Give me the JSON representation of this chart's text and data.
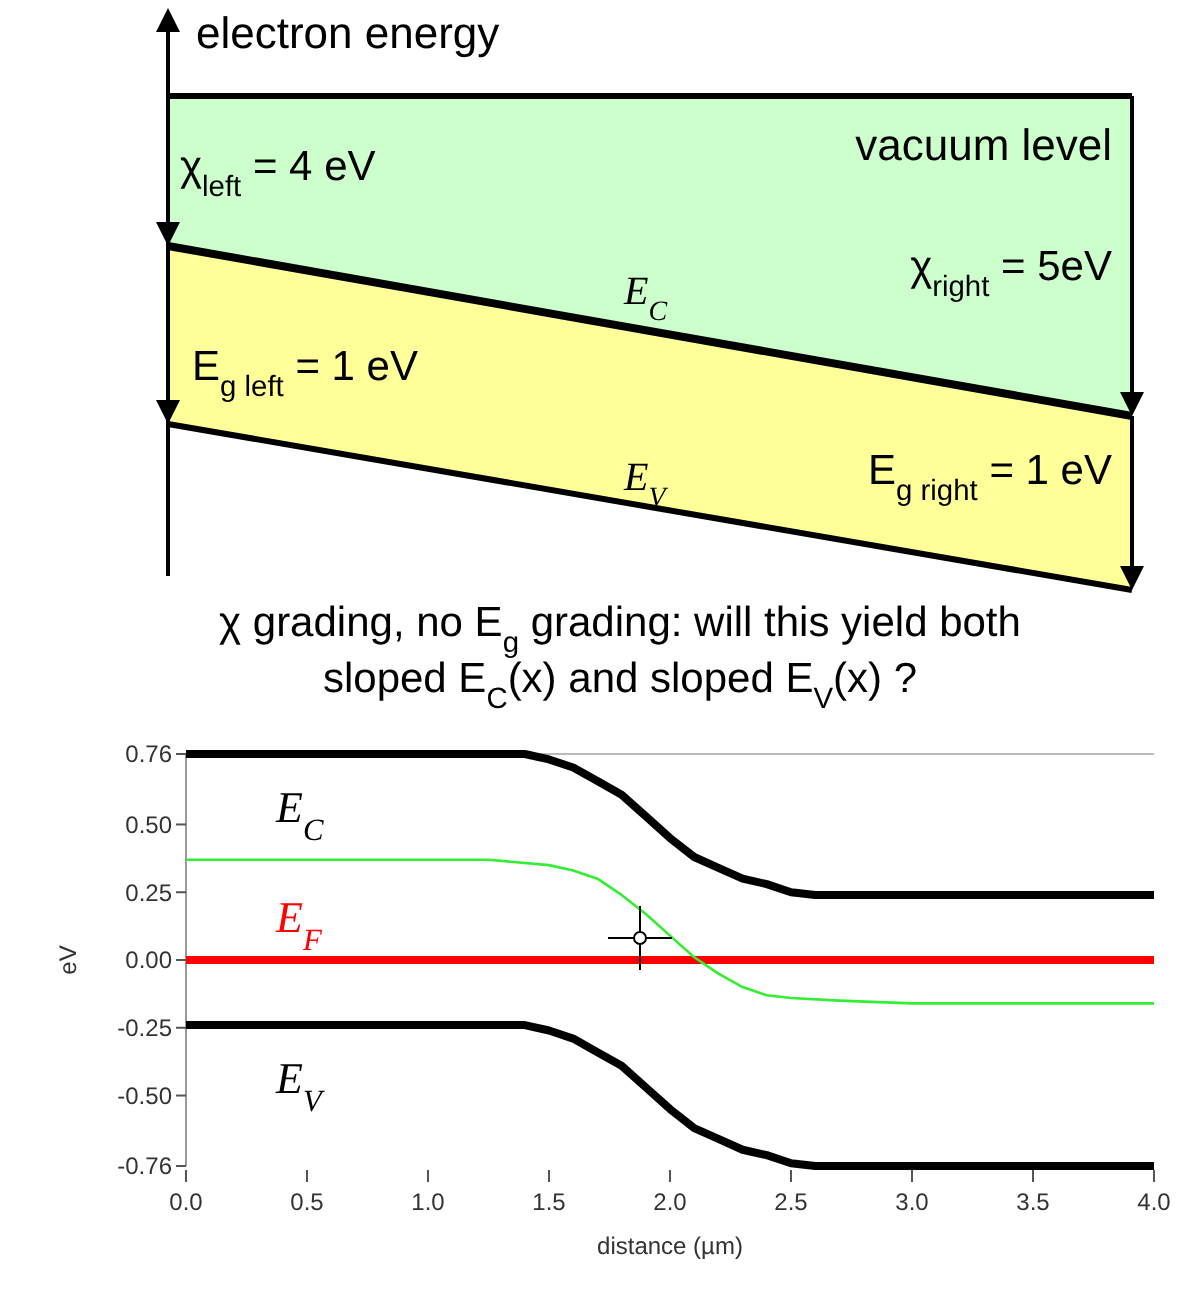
{
  "chart_data": [
    {
      "type": "other",
      "ylabel": "electron energy",
      "annotations": [
        "vacuum level",
        "χ$_{left}$ = 4 eV",
        "χ$_{right}$ = 5eV",
        "E$_{C}$",
        "E$_{g left}$ = 1 eV",
        "E$_{V}$",
        "E$_{g right}$ = 1 eV",
        "χ grading, no E$_{g}$ grading: will this yield both sloped E$_{C}$(x) and sloped E$_{V}$(x) ?"
      ]
    },
    {
      "type": "line",
      "xlabel": "distance (µm)",
      "ylabel": "eV",
      "xlim": [
        0,
        4
      ],
      "xticks": [
        {
          "value": 0,
          "label": "0.0"
        },
        {
          "value": 0.5,
          "label": "0.5"
        },
        {
          "value": 1,
          "label": "1.0"
        },
        {
          "value": 1.5,
          "label": "1.5"
        },
        {
          "value": 2,
          "label": "2.0"
        },
        {
          "value": 2.5,
          "label": "2.5"
        },
        {
          "value": 3,
          "label": "3.0"
        },
        {
          "value": 3.5,
          "label": "3.5"
        },
        {
          "value": 4,
          "label": "4.0"
        }
      ],
      "ylim": [
        -0.76,
        0.76
      ],
      "yticks": [
        {
          "value": -0.76,
          "label": "-0.76"
        },
        {
          "value": -0.5,
          "label": "-0.50"
        },
        {
          "value": -0.25,
          "label": "-0.25"
        },
        {
          "value": 0,
          "label": "0.00"
        },
        {
          "value": 0.25,
          "label": "0.25"
        },
        {
          "value": 0.5,
          "label": "0.50"
        },
        {
          "value": 0.76,
          "label": "0.76"
        }
      ],
      "grid": false,
      "marker": "none",
      "line_style": "solid",
      "series": [
        {
          "name": "E$_{C}$",
          "color": "#000000",
          "x": [
            0,
            1.4,
            1.5,
            1.6,
            1.7,
            1.8,
            1.9,
            2.0,
            2.1,
            2.2,
            2.3,
            2.4,
            2.5,
            2.6,
            2.7,
            4.0
          ],
          "values": [
            0.76,
            0.76,
            0.74,
            0.71,
            0.66,
            0.61,
            0.53,
            0.45,
            0.38,
            0.34,
            0.3,
            0.28,
            0.25,
            0.24,
            0.24,
            0.24
          ]
        },
        {
          "name": "E$_{F}$",
          "color": "#ff0000",
          "x": [
            0,
            4
          ],
          "values": [
            0,
            0
          ]
        },
        {
          "name": "E$_{V}$",
          "color": "#000000",
          "x": [
            0,
            1.4,
            1.5,
            1.6,
            1.7,
            1.8,
            1.9,
            2.0,
            2.1,
            2.2,
            2.3,
            2.4,
            2.5,
            2.6,
            2.7,
            4.0
          ],
          "values": [
            -0.24,
            -0.24,
            -0.26,
            -0.29,
            -0.34,
            -0.39,
            -0.47,
            -0.55,
            -0.62,
            -0.66,
            -0.7,
            -0.72,
            -0.75,
            -0.76,
            -0.76,
            -0.76
          ]
        },
        {
          "color": "#33ee33",
          "x": [
            0,
            1.25,
            1.5,
            1.6,
            1.7,
            1.8,
            1.9,
            2.0,
            2.1,
            2.2,
            2.3,
            2.4,
            2.5,
            2.7,
            3.0,
            4.0
          ],
          "values": [
            0.37,
            0.37,
            0.35,
            0.33,
            0.3,
            0.24,
            0.17,
            0.09,
            0.01,
            -0.05,
            -0.1,
            -0.13,
            -0.14,
            -0.15,
            -0.16,
            -0.16
          ]
        }
      ]
    }
  ]
}
